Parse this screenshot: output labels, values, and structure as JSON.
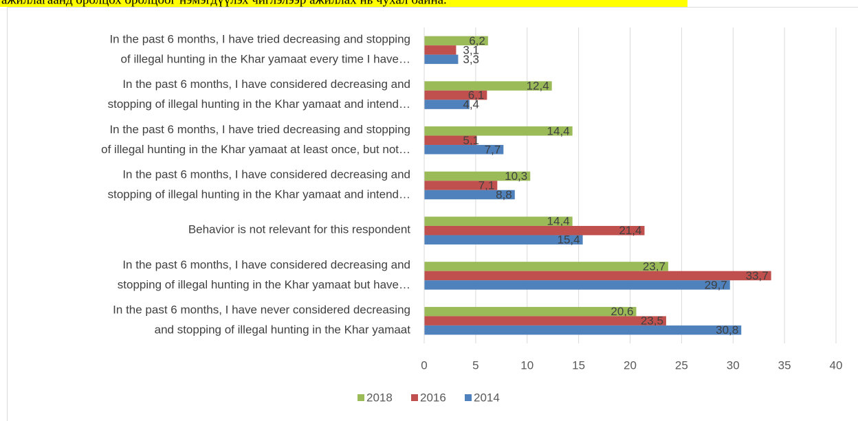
{
  "chart_data": {
    "type": "bar",
    "orientation": "horizontal",
    "annotation": "ажиллагаанд оролцох оролцоог нэмэгдүүлэх чиглэлээр ажиллах нь чухал байна.",
    "categories": [
      [
        "In the past 6 months, I have tried decreasing and stopping",
        "of illegal hunting in the Khar yamaat every time I have…"
      ],
      [
        "In the past 6 months, I have considered decreasing and",
        "stopping of illegal hunting in the Khar yamaat and intend…"
      ],
      [
        "In the past 6 months, I have tried decreasing and stopping",
        "of illegal hunting in the Khar yamaat at least once, but not…"
      ],
      [
        "In the past 6 months, I have considered decreasing and",
        "stopping of illegal hunting in the Khar yamaat and intend…"
      ],
      [
        "Behavior is not relevant for this respondent"
      ],
      [
        "In the past 6 months, I have considered decreasing and",
        "stopping of illegal hunting in the Khar yamaat but have…"
      ],
      [
        "In the past 6 months, I have never considered decreasing",
        "and stopping of illegal hunting in the Khar yamaat"
      ]
    ],
    "series": [
      {
        "name": "2018",
        "color": "#9bbb59",
        "values": [
          6.2,
          12.4,
          14.4,
          10.3,
          14.4,
          23.7,
          20.6
        ],
        "value_labels": [
          "6,2",
          "12,4",
          "14,4",
          "10,3",
          "14,4",
          "23,7",
          "20,6"
        ]
      },
      {
        "name": "2016",
        "color": "#c0504d",
        "values": [
          3.1,
          6.1,
          5.1,
          7.1,
          21.4,
          33.7,
          23.5
        ],
        "value_labels": [
          "3,1",
          "6,1",
          "5,1",
          "7,1",
          "21,4",
          "33,7",
          "23,5"
        ]
      },
      {
        "name": "2014",
        "color": "#4f81bd",
        "values": [
          3.3,
          4.4,
          7.7,
          8.8,
          15.4,
          29.7,
          30.8
        ],
        "value_labels": [
          "3,3",
          "4,4",
          "7,7",
          "8,8",
          "15,4",
          "29,7",
          "30,8"
        ]
      }
    ],
    "xlim": [
      0,
      40
    ],
    "xticks": [
      0,
      5,
      10,
      15,
      20,
      25,
      30,
      35,
      40
    ],
    "grid": true,
    "legend": "bottom"
  }
}
